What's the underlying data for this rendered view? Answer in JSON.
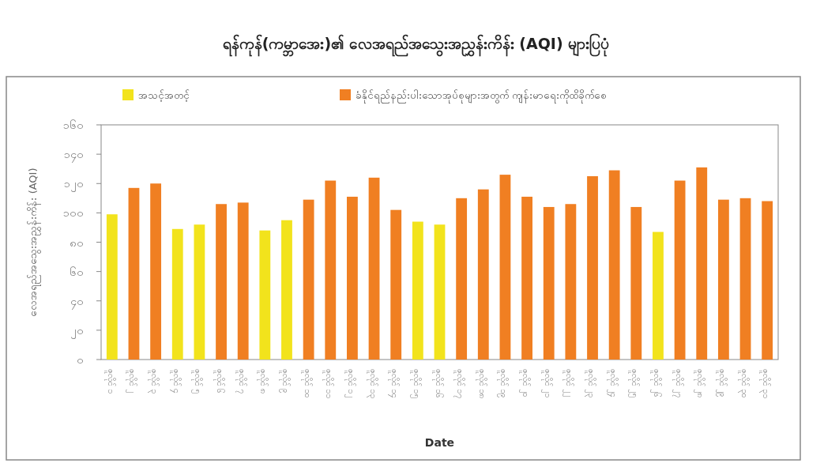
{
  "chart_data": {
    "type": "bar",
    "title": "ရန်ကုန်(ကမ္ဘာအေး)၏ လေအရည်အသွေးအညွှန်းကိန်း (AQI) များပြပုံ",
    "xlabel": "Date",
    "ylabel": "လေအရည်အသွေးအညွှန်းကိန်း (AQI)",
    "categories": [
      "ဇူလိုင် ၁",
      "ဇူလိုင် ၂",
      "ဇူလိုင် ၃",
      "ဇူလိုင် ၄",
      "ဇူလိုင် ၅",
      "ဇူလိုင် ၆",
      "ဇူလိုင် ၇",
      "ဇူလိုင် ၈",
      "ဇူလိုင် ၉",
      "ဇူလိုင် ၁၀",
      "ဇူလိုင် ၁၁",
      "ဇူလိုင် ၁၂",
      "ဇူလိုင် ၁၃",
      "ဇူလိုင် ၁၄",
      "ဇူလိုင် ၁၅",
      "ဇူလိုင် ၁၆",
      "ဇူလိုင် ၁၇",
      "ဇူလိုင် ၁၈",
      "ဇူလိုင် ၁၉",
      "ဇူလိုင် ၂၀",
      "ဇူလိုင် ၂၁",
      "ဇူလိုင် ၂၂",
      "ဇူလိုင် ၂၃",
      "ဇူလိုင် ၂၄",
      "ဇူလိုင် ၂၅",
      "ဇူလိုင် ၂၆",
      "ဇူလိုင် ၂၇",
      "ဇူလိုင် ၂၈",
      "ဇူလိုင် ၂၉",
      "ဇူလိုင် ၃၀",
      "ဇူလိုင် ၃၁"
    ],
    "series": [
      {
        "name": "အသင့်အတင့်",
        "color": "#f2e31c",
        "values": [
          99,
          null,
          null,
          89,
          92,
          null,
          null,
          88,
          95,
          null,
          null,
          null,
          null,
          null,
          94,
          92,
          null,
          null,
          null,
          null,
          null,
          null,
          null,
          null,
          null,
          87,
          null,
          null,
          null,
          null,
          null
        ]
      },
      {
        "name": "ခံနိုင်ရည်နည်းပါးသောအုပ်စုများအတွက် ကျန်းမာရေးကိုထိခိုက်စေ",
        "color": "#f07f22",
        "values": [
          null,
          117,
          120,
          null,
          null,
          106,
          107,
          null,
          null,
          109,
          122,
          111,
          124,
          102,
          null,
          null,
          110,
          116,
          126,
          111,
          104,
          106,
          125,
          129,
          104,
          null,
          122,
          131,
          109,
          110,
          108
        ]
      }
    ],
    "ylim": [
      0,
      160
    ],
    "yticks": [
      {
        "value": 0,
        "label": "၀"
      },
      {
        "value": 20,
        "label": "၂၀"
      },
      {
        "value": 40,
        "label": "၄၀"
      },
      {
        "value": 60,
        "label": "၆၀"
      },
      {
        "value": 80,
        "label": "၈၀"
      },
      {
        "value": 100,
        "label": "၁၀၀"
      },
      {
        "value": 120,
        "label": "၁၂၀"
      },
      {
        "value": 140,
        "label": "၁၄၀"
      },
      {
        "value": 160,
        "label": "၁၆၀"
      }
    ],
    "legend": "top"
  }
}
